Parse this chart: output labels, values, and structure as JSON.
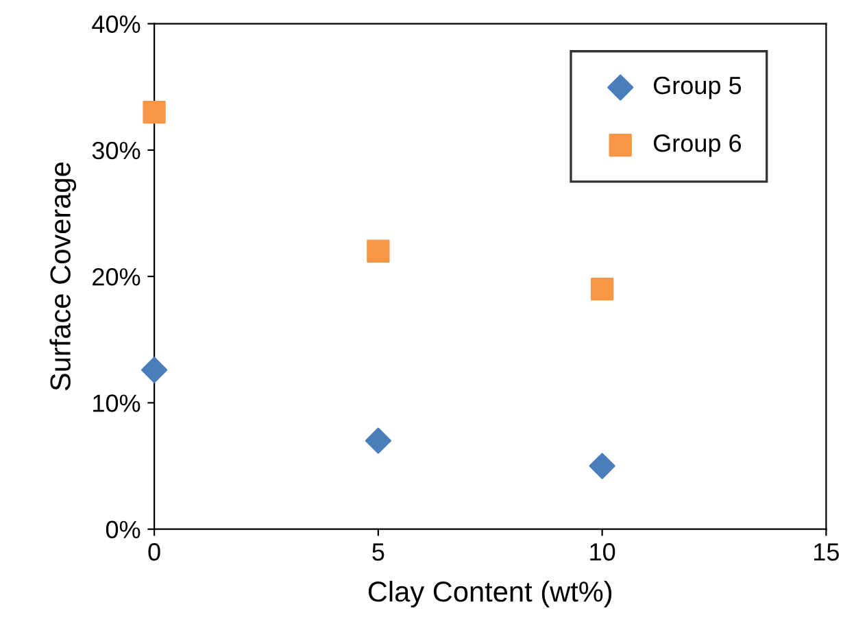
{
  "chart_data": {
    "type": "scatter",
    "xlabel": "Clay Content (wt%)",
    "ylabel": "Surface Coverage",
    "x": [
      0,
      5,
      10
    ],
    "series": [
      {
        "name": "Group 5",
        "color": "#4a7ebb",
        "values": [
          12.6,
          7,
          5
        ],
        "marker": "diamond"
      },
      {
        "name": "Group 6",
        "color": "#f79646",
        "values": [
          33,
          22,
          19
        ],
        "marker": "square"
      }
    ],
    "xlim": [
      0,
      15
    ],
    "xticks": [
      0,
      5,
      10,
      15
    ],
    "ylim": [
      0,
      40
    ],
    "yticks": [
      {
        "value": 0,
        "label": "0%"
      },
      {
        "value": 10,
        "label": "10%"
      },
      {
        "value": 20,
        "label": "20%"
      },
      {
        "value": 30,
        "label": "30%"
      },
      {
        "value": 40,
        "label": "40%"
      }
    ],
    "grid": false,
    "legend": "top right"
  }
}
